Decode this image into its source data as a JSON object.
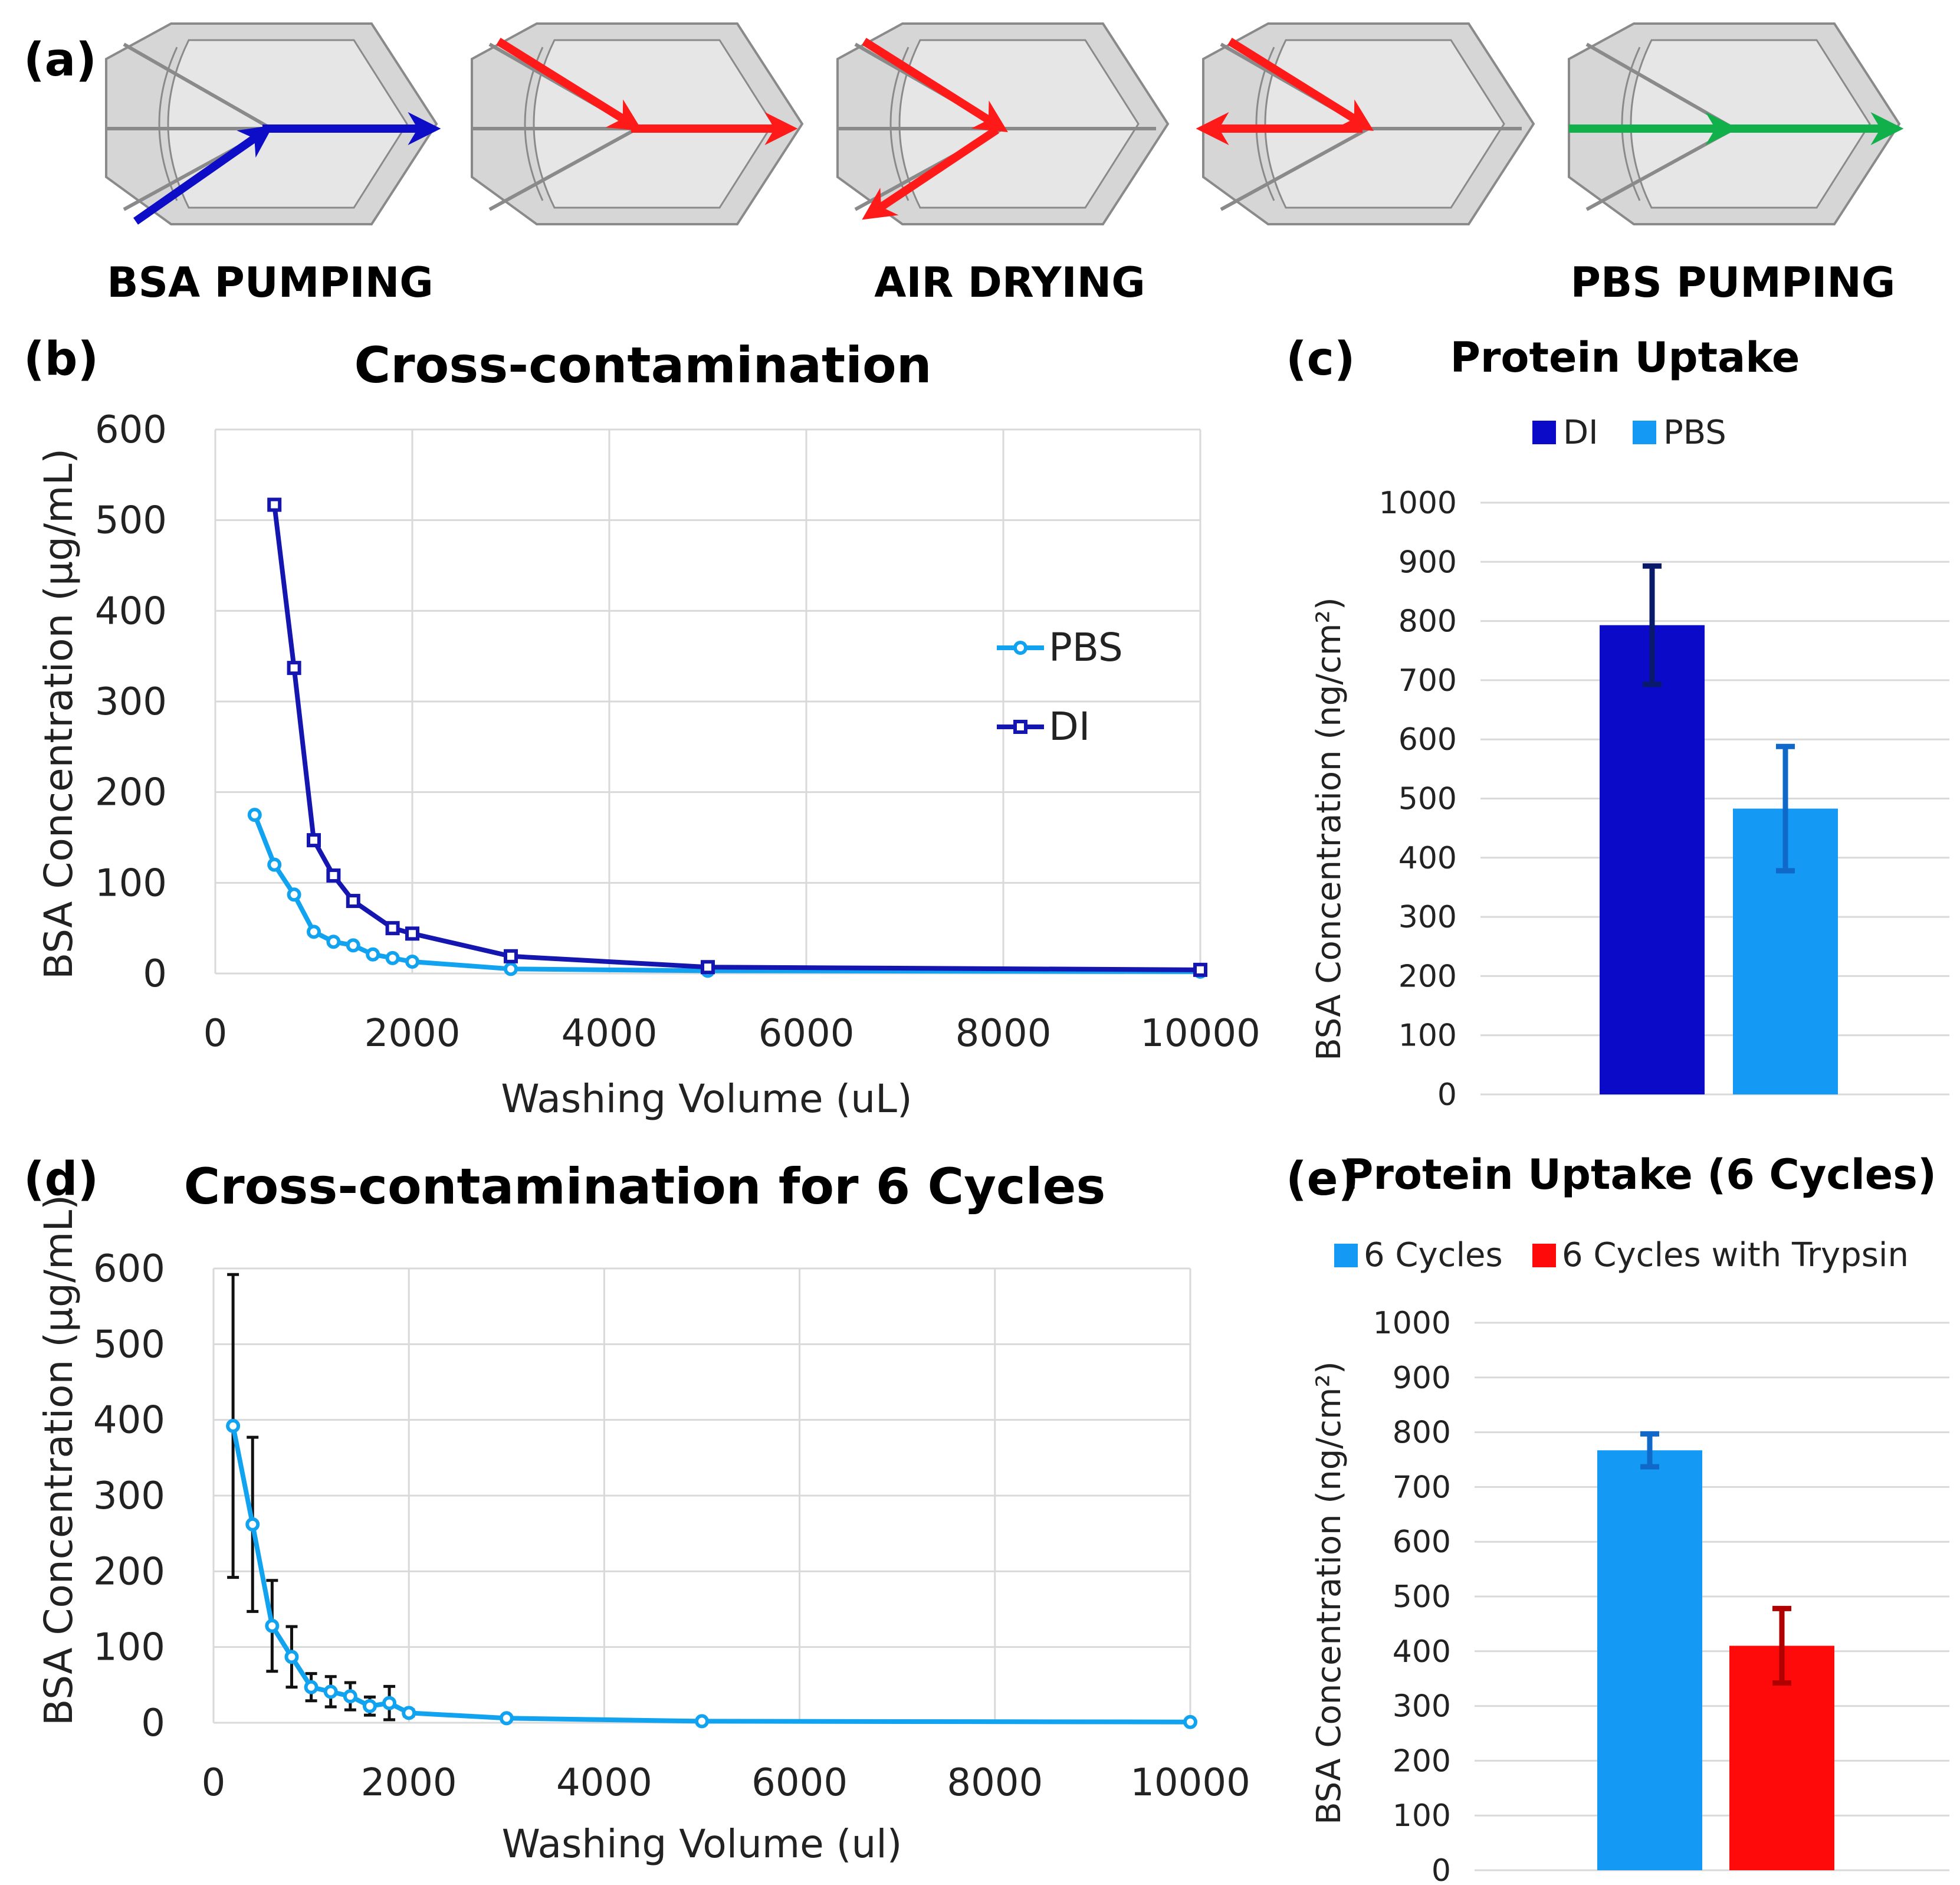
{
  "panel_a": {
    "label": "(a)",
    "steps": [
      {
        "label": "BSA PUMPING",
        "color": "#0d0dc8"
      },
      {
        "label": "AIR DRYING",
        "color": "#ff1a1a"
      },
      {
        "label": "PBS PUMPING",
        "color": "#11b04b"
      }
    ]
  },
  "chart_data": [
    {
      "panel": "(b)",
      "type": "line",
      "title": "Cross-contamination",
      "xlabel": "Washing Volume (uL)",
      "ylabel": "BSA Concentration (µg/mL)",
      "xlim": [
        0,
        10000
      ],
      "ylim": [
        0,
        600
      ],
      "xticks": [
        "0",
        "2000",
        "4000",
        "6000",
        "8000",
        "10000"
      ],
      "yticks": [
        "0",
        "100",
        "200",
        "300",
        "400",
        "500",
        "600"
      ],
      "legend": "right",
      "series": [
        {
          "name": "PBS",
          "color": "#12a3f0",
          "marker": "circle",
          "x": [
            400,
            600,
            800,
            1000,
            1200,
            1400,
            1600,
            1800,
            2000,
            3000,
            5000,
            10000
          ],
          "y": [
            175,
            120,
            87,
            46,
            35,
            31,
            21,
            17,
            13,
            5,
            3,
            2
          ]
        },
        {
          "name": "DI",
          "color": "#1515b0",
          "marker": "square",
          "x": [
            600,
            800,
            1000,
            1200,
            1400,
            1800,
            2000,
            3000,
            5000,
            10000
          ],
          "y": [
            517,
            337,
            147,
            108,
            80,
            50,
            44,
            19,
            7,
            4
          ]
        }
      ]
    },
    {
      "panel": "(c)",
      "type": "bar",
      "title": "Protein Uptake",
      "ylabel": "BSA Concentration (ng/cm²)",
      "ylim": [
        0,
        1000
      ],
      "yticks": [
        "0",
        "100",
        "200",
        "300",
        "400",
        "500",
        "600",
        "700",
        "800",
        "900",
        "1000"
      ],
      "legend": "top",
      "series": [
        {
          "name": "DI",
          "color": "#0a0ac8",
          "err_color": "#0a1a6a",
          "value": 793,
          "err": 100
        },
        {
          "name": "PBS",
          "color": "#1499f5",
          "err_color": "#1068c8",
          "value": 483,
          "err": 105
        }
      ]
    },
    {
      "panel": "(d)",
      "type": "line",
      "title": "Cross-contamination for 6 Cycles",
      "xlabel": "Washing Volume (ul)",
      "ylabel": "BSA Concentration (µg/mL)",
      "xlim": [
        0,
        10000
      ],
      "ylim": [
        0,
        600
      ],
      "xticks": [
        "0",
        "2000",
        "4000",
        "6000",
        "8000",
        "10000"
      ],
      "yticks": [
        "0",
        "100",
        "200",
        "300",
        "400",
        "500",
        "600"
      ],
      "series": [
        {
          "name": "6 Cycles",
          "color": "#12a3f0",
          "marker": "circle",
          "x": [
            200,
            400,
            600,
            800,
            1000,
            1200,
            1400,
            1600,
            1800,
            2000,
            3000,
            5000,
            10000
          ],
          "y": [
            392,
            262,
            128,
            87,
            47,
            41,
            35,
            22,
            26,
            13,
            6,
            2,
            1
          ],
          "err": [
            200,
            115,
            60,
            40,
            18,
            20,
            18,
            12,
            22,
            4,
            2,
            1,
            1
          ]
        }
      ]
    },
    {
      "panel": "(e)",
      "type": "bar",
      "title": "Protein Uptake (6 Cycles)",
      "ylabel": "BSA Concentration (ng/cm²)",
      "ylim": [
        0,
        1000
      ],
      "yticks": [
        "0",
        "100",
        "200",
        "300",
        "400",
        "500",
        "600",
        "700",
        "800",
        "900",
        "1000"
      ],
      "legend": "top",
      "series": [
        {
          "name": "6 Cycles",
          "color": "#1499f5",
          "err_color": "#1068c8",
          "value": 767,
          "err": 30
        },
        {
          "name": "6 Cycles with Trypsin",
          "color": "#ff0a0a",
          "err_color": "#b00000",
          "value": 410,
          "err": 68
        }
      ]
    }
  ]
}
